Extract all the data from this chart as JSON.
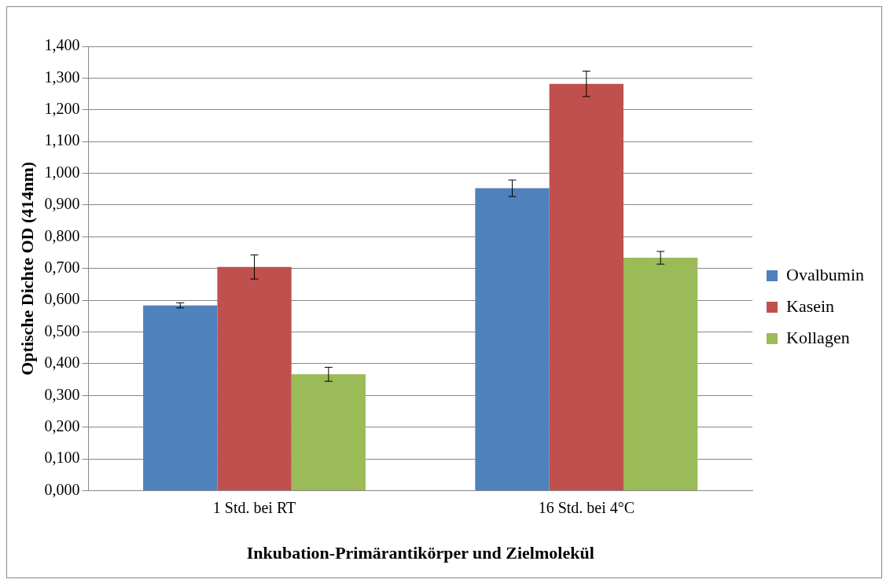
{
  "chart_data": {
    "type": "bar",
    "xlabel": "Inkubation-Primärantikörper und Zielmolekül",
    "ylabel": "Optische Dichte OD (414nm)",
    "categories": [
      "1 Std. bei RT",
      "16 Std. bei 4°C"
    ],
    "series": [
      {
        "name": "Ovalbumin",
        "color": "#4f81bd",
        "values": [
          0.584,
          0.953
        ],
        "errors": [
          0.008,
          0.026
        ]
      },
      {
        "name": "Kasein",
        "color": "#c0504d",
        "values": [
          0.705,
          1.282
        ],
        "errors": [
          0.038,
          0.04
        ]
      },
      {
        "name": "Kollagen",
        "color": "#9bbb59",
        "values": [
          0.367,
          0.734
        ],
        "errors": [
          0.022,
          0.02
        ]
      }
    ],
    "ylim": [
      0,
      1.4
    ],
    "yticks": [
      {
        "value": 0,
        "label": "0,000"
      },
      {
        "value": 0.1,
        "label": "0,100"
      },
      {
        "value": 0.2,
        "label": "0,200"
      },
      {
        "value": 0.3,
        "label": "0,300"
      },
      {
        "value": 0.4,
        "label": "0,400"
      },
      {
        "value": 0.5,
        "label": "0,500"
      },
      {
        "value": 0.6,
        "label": "0,600"
      },
      {
        "value": 0.7,
        "label": "0,700"
      },
      {
        "value": 0.8,
        "label": "0,800"
      },
      {
        "value": 0.9,
        "label": "0,900"
      },
      {
        "value": 1,
        "label": "1,000"
      },
      {
        "value": 1.1,
        "label": "1,100"
      },
      {
        "value": 1.2,
        "label": "1,200"
      },
      {
        "value": 1.3,
        "label": "1,300"
      },
      {
        "value": 1.4,
        "label": "1,400"
      }
    ],
    "grid": "y",
    "legend": "right"
  }
}
